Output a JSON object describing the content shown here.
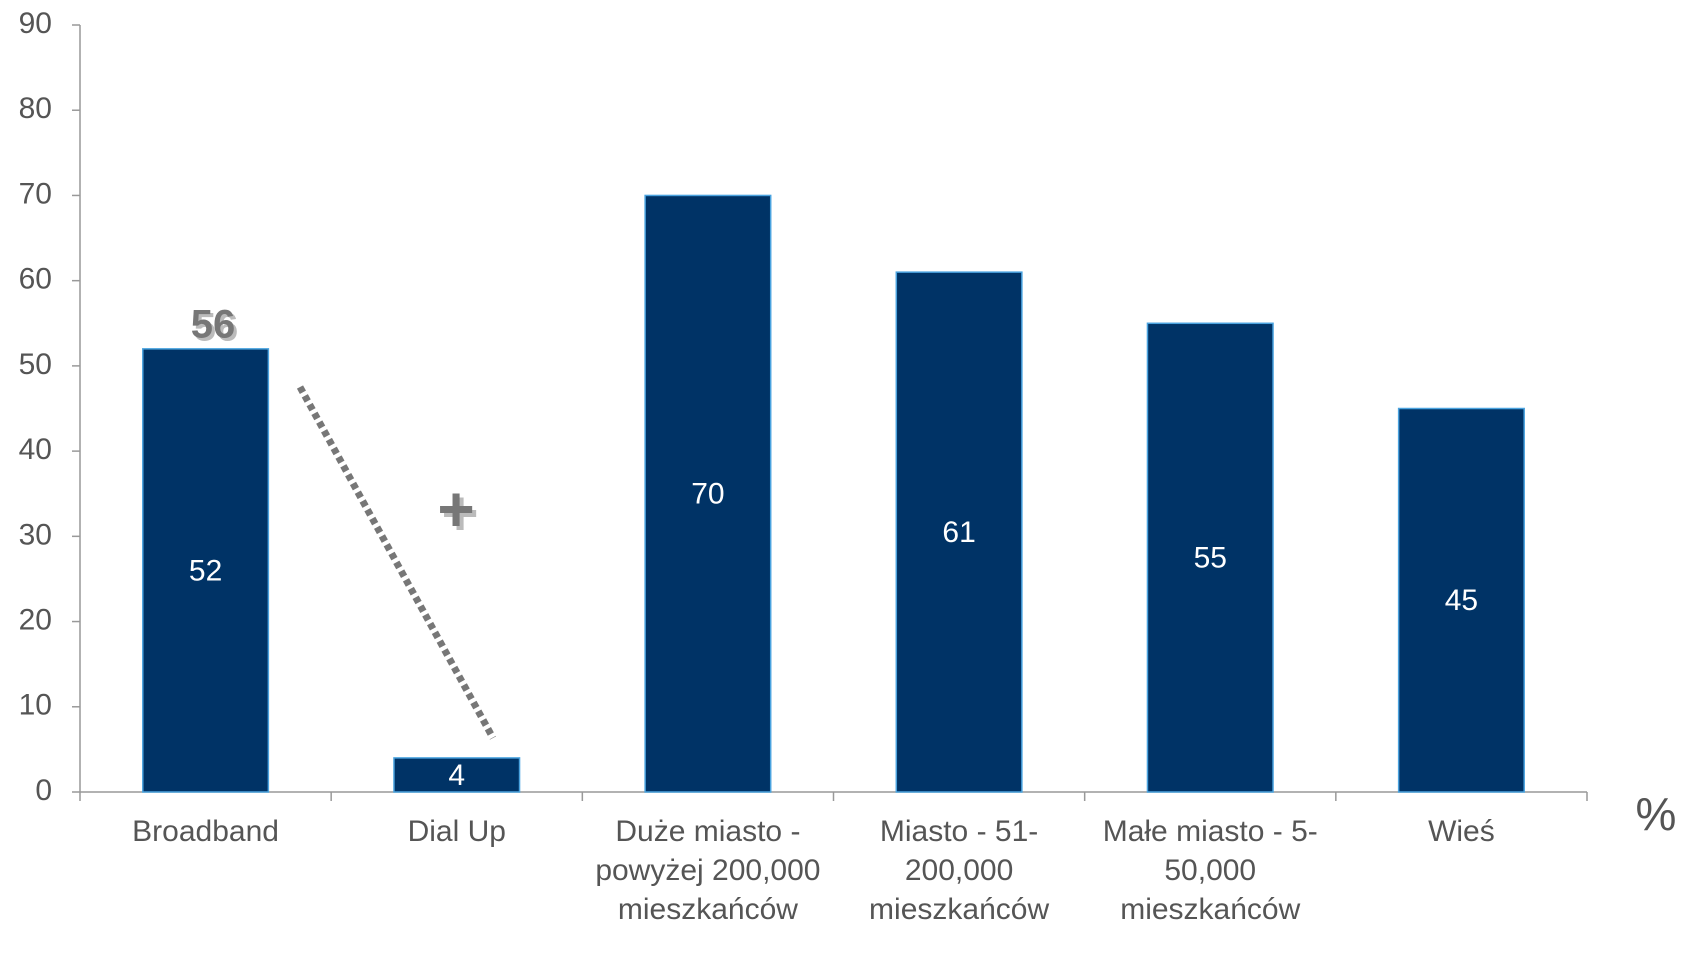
{
  "chart_data": {
    "type": "bar",
    "categories": [
      "Broadband",
      "Dial Up",
      "Duże miasto - powyżej 200,000 mieszkańców",
      "Miasto - 51-200,000 mieszkańców",
      "Małe miasto - 5-50,000 mieszkańców",
      "Wieś"
    ],
    "values": [
      52,
      4,
      70,
      61,
      55,
      45
    ],
    "color": "#003366",
    "ylim": [
      0,
      90
    ],
    "yticks": [
      0,
      10,
      20,
      30,
      40,
      50,
      60,
      70,
      80,
      90
    ],
    "y_unit": "%",
    "annotations": [
      "56",
      "+"
    ],
    "grid": false
  }
}
